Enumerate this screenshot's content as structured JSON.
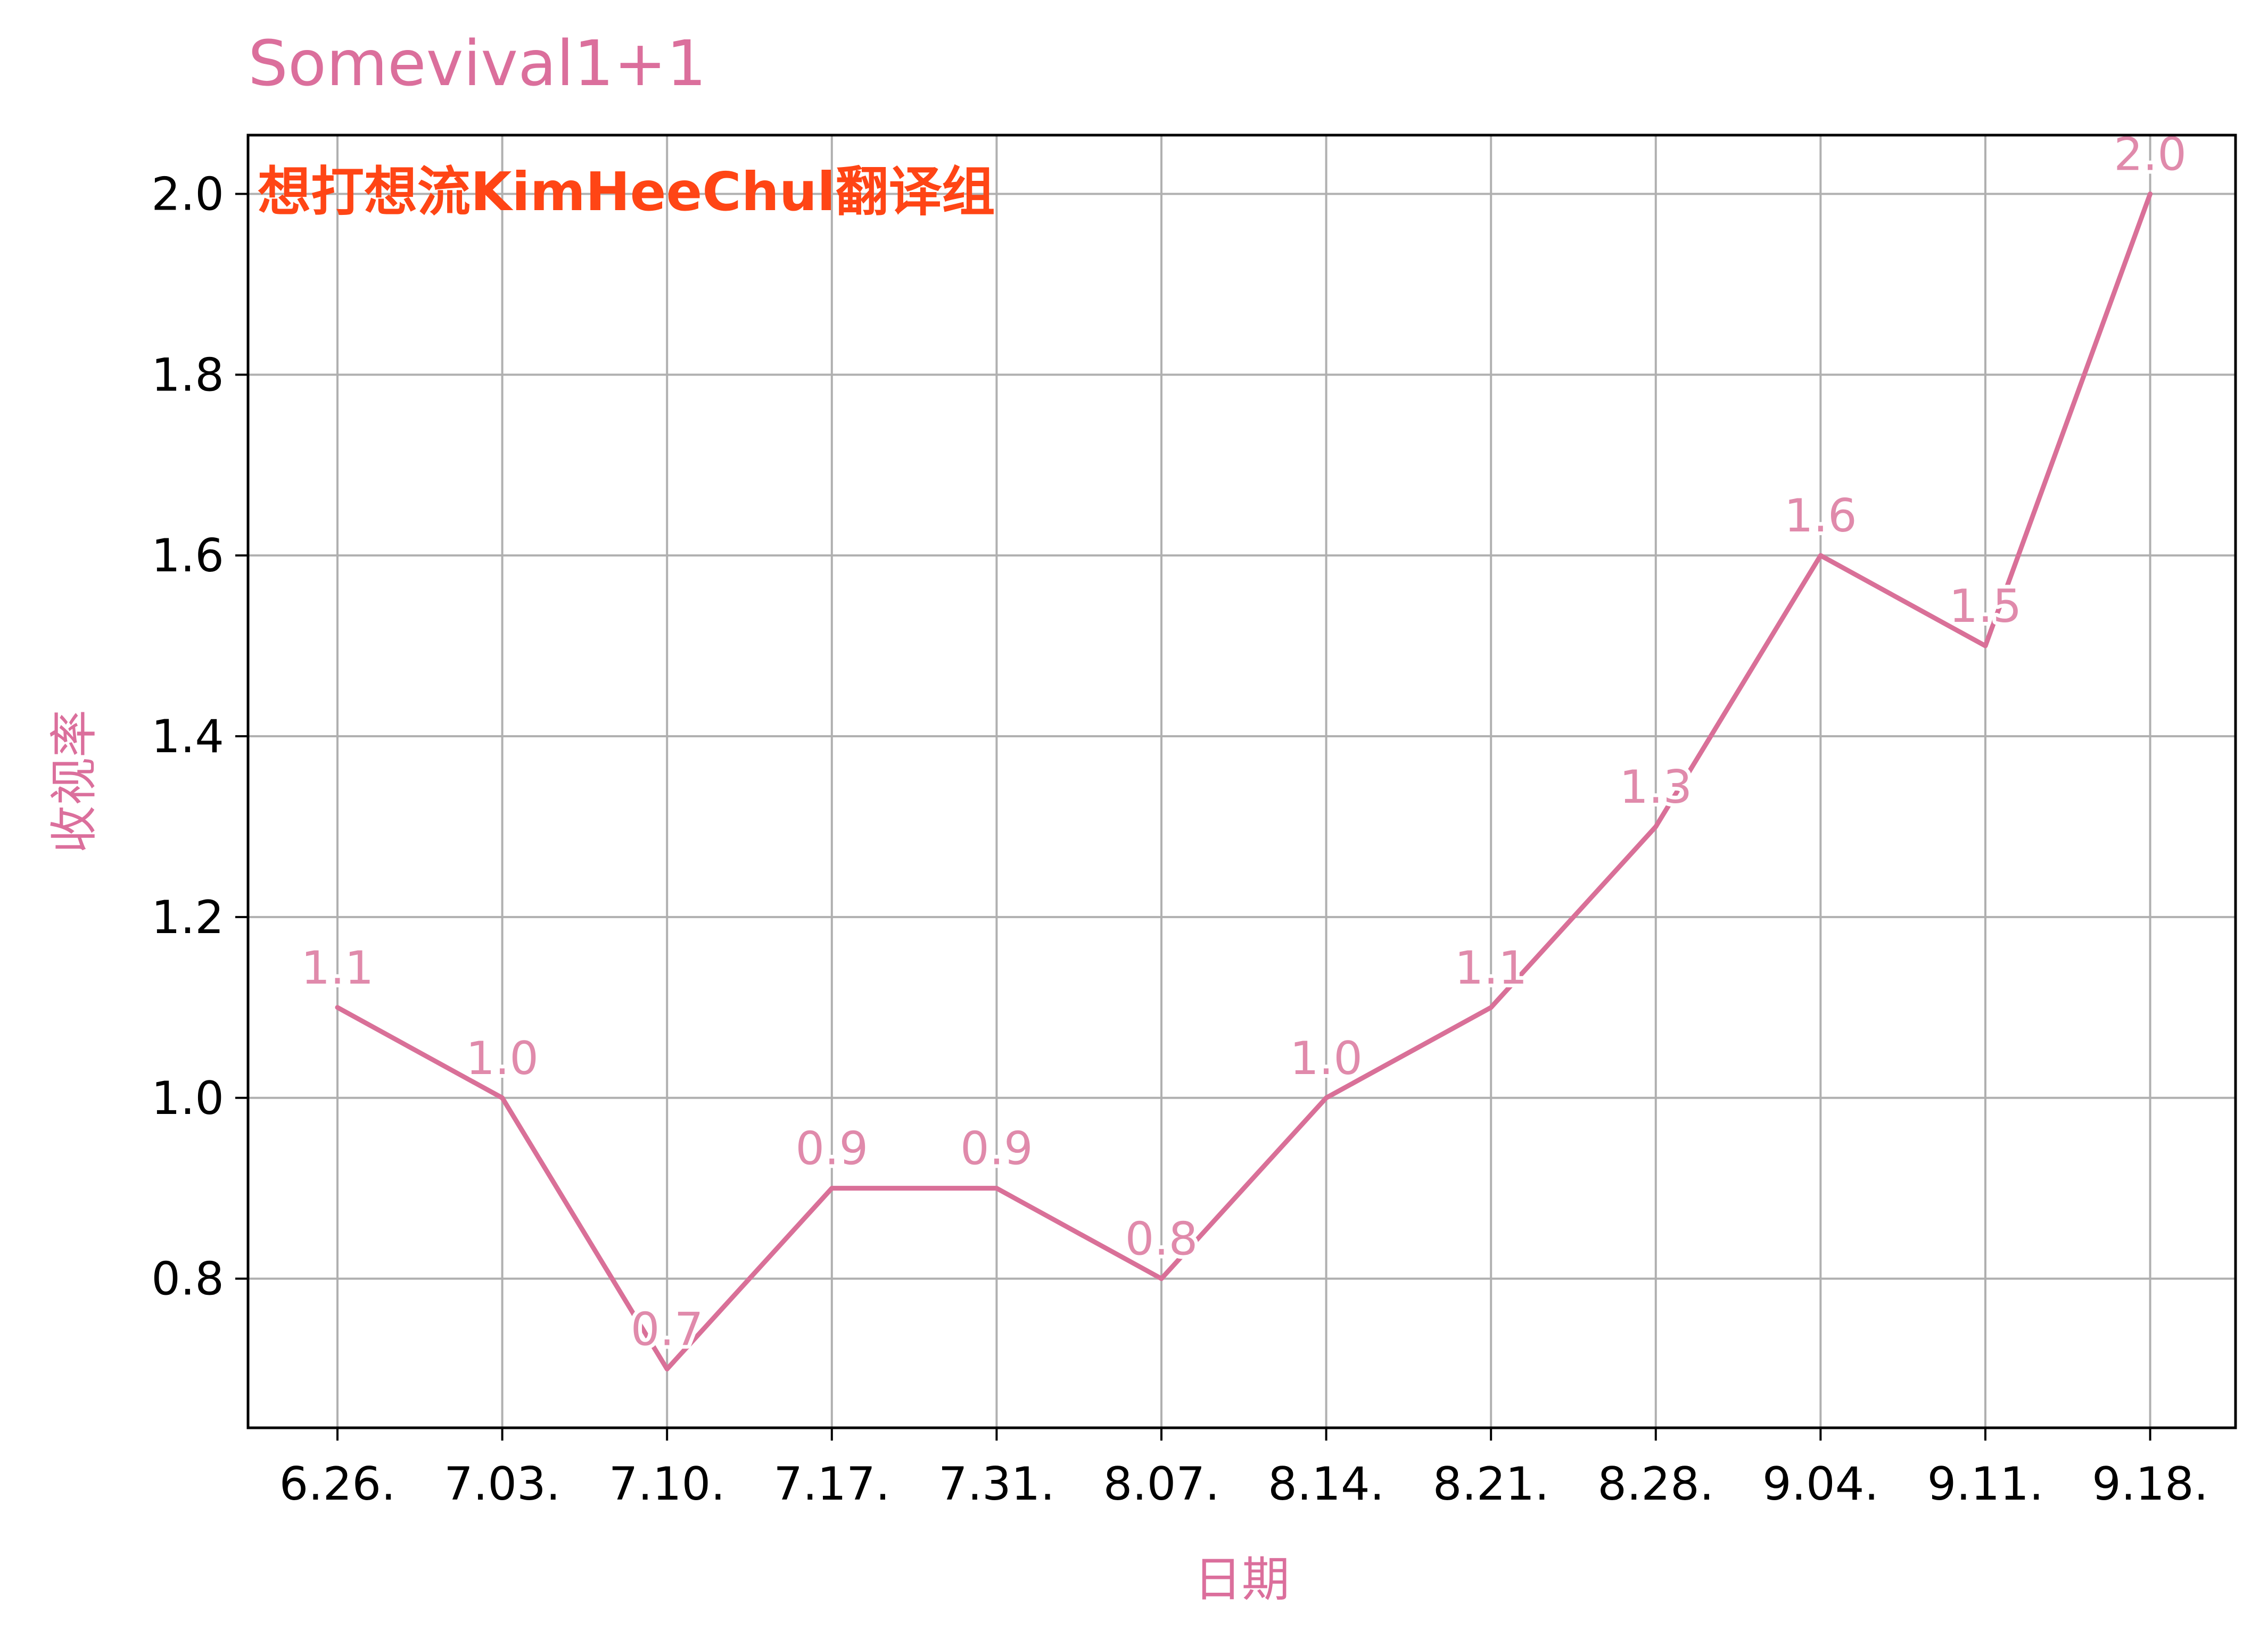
{
  "chart_data": {
    "type": "line",
    "title": "Somevival1+1",
    "xlabel": "日期",
    "ylabel": "收视率",
    "categories": [
      "6.26.",
      "7.03.",
      "7.10.",
      "7.17.",
      "7.31.",
      "8.07.",
      "8.14.",
      "8.21.",
      "8.28.",
      "9.04.",
      "9.11.",
      "9.18."
    ],
    "values": [
      1.1,
      1.0,
      0.7,
      0.9,
      0.9,
      0.8,
      1.0,
      1.1,
      1.3,
      1.6,
      1.5,
      2.0
    ],
    "data_labels": [
      "1.1",
      "1.0",
      "0.7",
      "0.9",
      "0.9",
      "0.8",
      "1.0",
      "1.1",
      "1.3",
      "1.6",
      "1.5",
      "2.0"
    ],
    "yticks": [
      0.8,
      1.0,
      1.2,
      1.4,
      1.6,
      1.8,
      2.0
    ],
    "ytick_labels": [
      "0.8",
      "1.0",
      "1.2",
      "1.4",
      "1.6",
      "1.8",
      "2.0"
    ],
    "ylim": [
      0.635,
      2.065
    ],
    "grid": true,
    "annotation": "想打想流KimHeeChul翻译组",
    "colors": {
      "line": "#d97098",
      "title": "#db6f9c",
      "data_label": "#e08aab",
      "annotation": "#ff4515",
      "grid": "#b0b0b0",
      "axis": "#000000"
    }
  }
}
